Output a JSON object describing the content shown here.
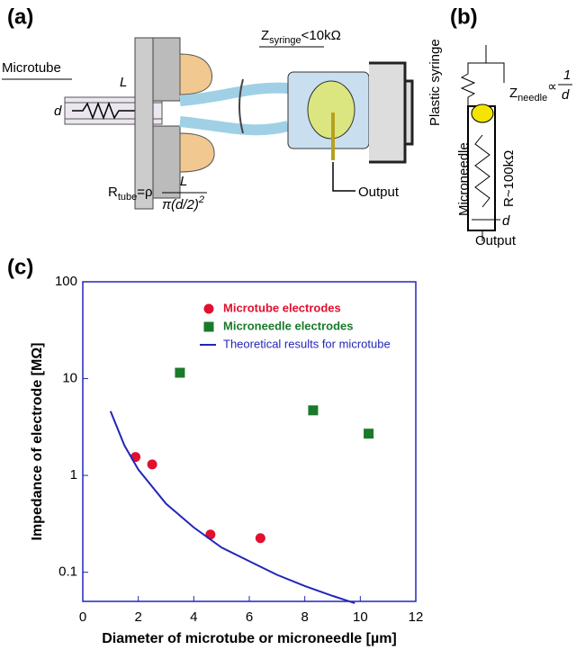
{
  "diagram": {
    "a": {
      "label": "(a)",
      "microtube": "Microtube",
      "length": "L",
      "diameter": "d",
      "z_syringe": "Z",
      "z_syringe_sub": "syringe",
      "z_syringe_value": "<10kΩ",
      "syringe": "Plastic syringe",
      "r_tube": "R",
      "r_tube_sub": "tube",
      "r_tube_eq": "=ρ",
      "r_tube_num": "L",
      "r_tube_den": "π(d/2)",
      "r_tube_den_exp": "2",
      "output": "Output"
    },
    "b": {
      "label": "(b)",
      "z_needle": "Z",
      "z_needle_sub": "needle",
      "z_needle_prop": "∝",
      "z_needle_num": "1",
      "z_needle_den": "d",
      "microneedle": "Microneedle",
      "r_needle": "R~100kΩ",
      "diameter": "d",
      "output": "Output"
    }
  },
  "chart_data": {
    "type": "scatter",
    "panel_label": "(c)",
    "x_label": "Diameter of microtube or microneedle [µm]",
    "y_label": "Impedance of electrode [MΩ]",
    "xlim": [
      0,
      12
    ],
    "xticks": [
      0,
      2,
      4,
      6,
      8,
      10,
      12
    ],
    "ylim": [
      0.05,
      100
    ],
    "yticks": [
      0.1,
      1,
      10,
      100
    ],
    "y_scale": "log",
    "grid": false,
    "legend": "upper right",
    "series": [
      {
        "name": "Microtube electrodes",
        "color": "#e0102e",
        "marker": "circle",
        "x": [
          1.9,
          2.5,
          4.6,
          6.4
        ],
        "values": [
          1.55,
          1.3,
          0.245,
          0.225
        ]
      },
      {
        "name": "Microneedle electrodes",
        "color": "#1a7a2a",
        "marker": "square",
        "x": [
          3.5,
          8.3,
          10.3
        ],
        "values": [
          11.5,
          4.7,
          2.7
        ]
      },
      {
        "name": "Theoretical results for microtube",
        "color": "#2226b8",
        "marker": "line",
        "x": [
          1,
          1.5,
          2,
          3,
          4,
          5,
          6,
          7,
          8,
          9,
          9.8
        ],
        "values": [
          4.6,
          2.04,
          1.15,
          0.51,
          0.29,
          0.18,
          0.13,
          0.094,
          0.072,
          0.057,
          0.048
        ]
      }
    ]
  }
}
